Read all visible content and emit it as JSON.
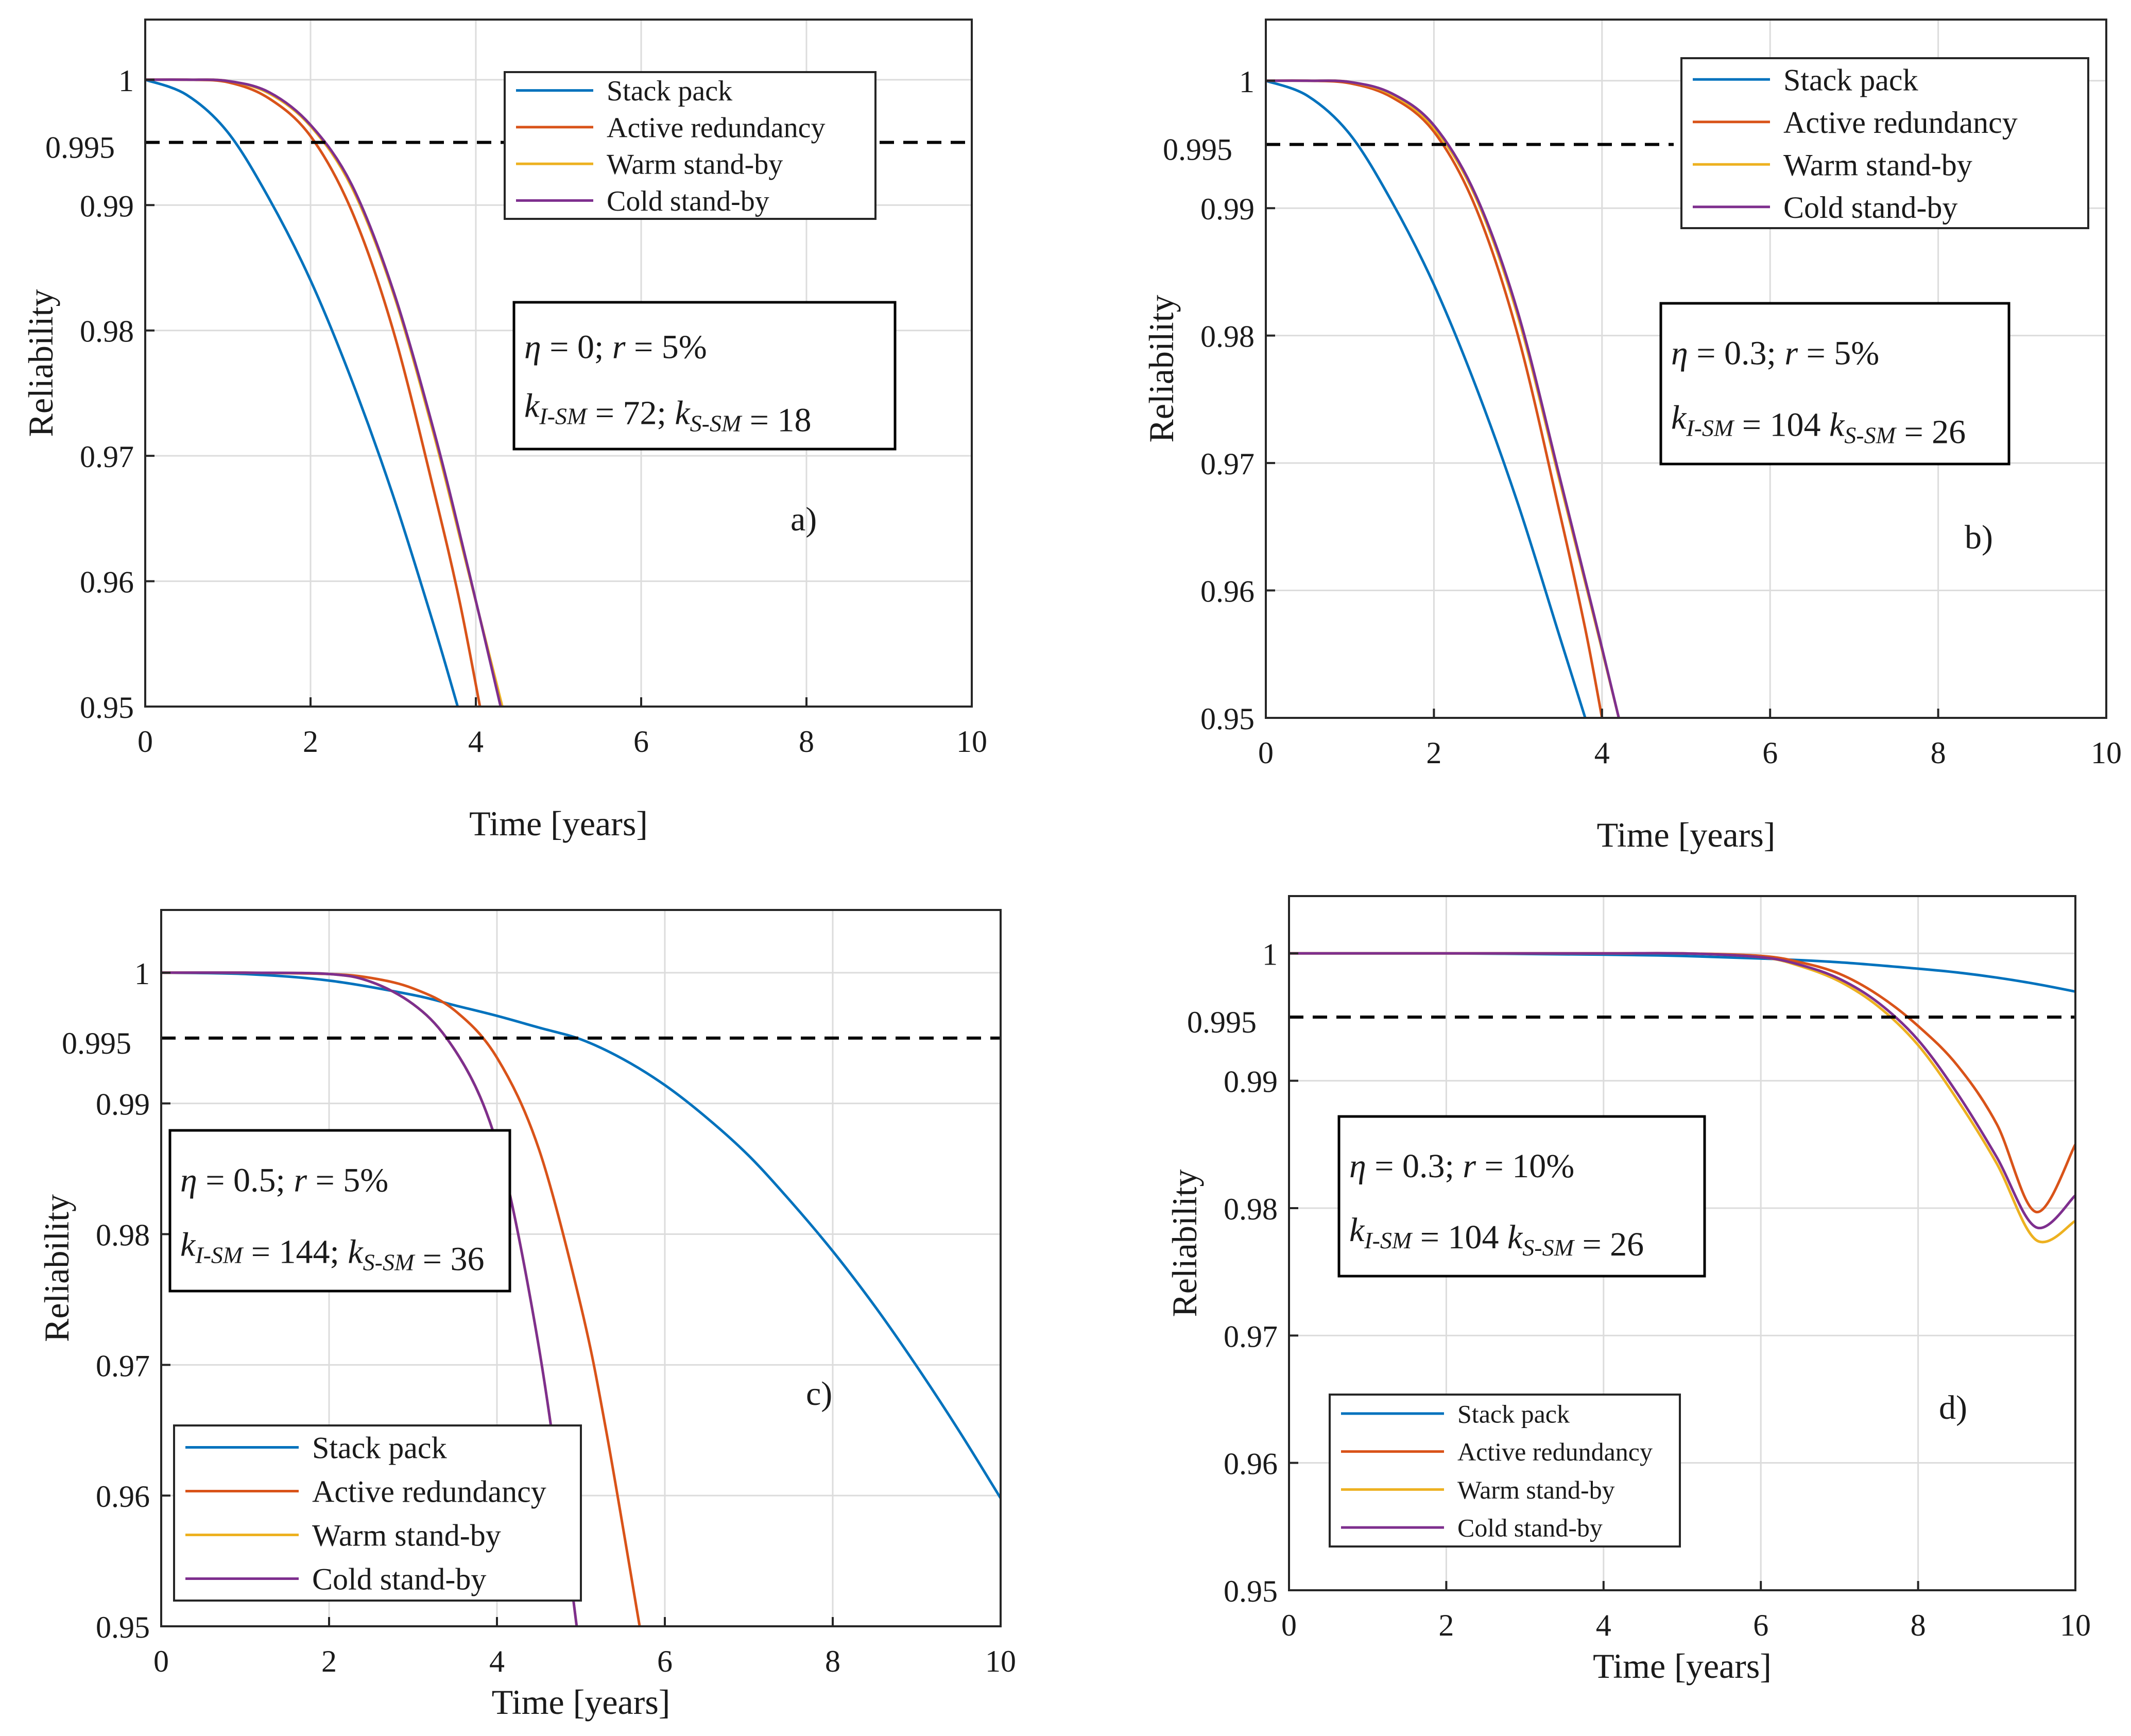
{
  "colors": {
    "stack": "#0072BD",
    "active": "#D95319",
    "warm": "#EDB120",
    "cold": "#7E2F8E",
    "grid": "#dcdcdc",
    "axis": "#262626",
    "threshold": "#000000"
  },
  "chart_data": [
    {
      "type": "line",
      "panel": "a)",
      "xlabel": "Time [years]",
      "ylabel": "Reliability",
      "xlim": [
        0,
        10
      ],
      "ylim": [
        0.95,
        1.005
      ],
      "xticks": [
        "0",
        "2",
        "4",
        "6",
        "8",
        "10"
      ],
      "yticks": [
        "0.95",
        "0.96",
        "0.97",
        "0.98",
        "0.99",
        "1"
      ],
      "threshold": {
        "value": 0.995,
        "label": "0.995"
      },
      "legend": {
        "position": "top-right",
        "entries": [
          "Stack pack",
          "Active redundancy",
          "Warm stand-by",
          "Cold stand-by"
        ]
      },
      "info": {
        "line1_eta": "η",
        "line1_rest": "= 0; ",
        "line1_r": "r",
        "line1_end": "= 5%",
        "line2": "k_{I-SM} = 72; k_{S-SM} = 18"
      },
      "series": [
        {
          "name": "Stack pack",
          "x": [
            0,
            0.5,
            1,
            1.5,
            2,
            2.5,
            3,
            3.5,
            3.78
          ],
          "y": [
            1,
            0.9988,
            0.9958,
            0.9905,
            0.984,
            0.976,
            0.9668,
            0.9563,
            0.95
          ]
        },
        {
          "name": "Active redundancy",
          "x": [
            0,
            0.5,
            1,
            1.5,
            2,
            2.5,
            3,
            3.5,
            3.8,
            4.05
          ],
          "y": [
            1,
            1,
            0.9998,
            0.9985,
            0.9955,
            0.9895,
            0.98,
            0.967,
            0.9585,
            0.95
          ]
        },
        {
          "name": "Warm stand-by",
          "x": [
            0,
            0.5,
            1,
            1.5,
            2,
            2.5,
            3,
            3.5,
            3.9,
            4.32
          ],
          "y": [
            1,
            1,
            0.9999,
            0.9989,
            0.9963,
            0.9914,
            0.983,
            0.9715,
            0.961,
            0.95
          ]
        },
        {
          "name": "Cold stand-by",
          "x": [
            0,
            0.5,
            1,
            1.5,
            2,
            2.5,
            3,
            3.5,
            3.9,
            4.3
          ],
          "y": [
            1,
            1,
            0.9999,
            0.999,
            0.9964,
            0.9916,
            0.9832,
            0.9718,
            0.9612,
            0.95
          ]
        }
      ]
    },
    {
      "type": "line",
      "panel": "b)",
      "xlabel": "Time [years]",
      "ylabel": "Reliability",
      "xlim": [
        0,
        10
      ],
      "ylim": [
        0.95,
        1.005
      ],
      "xticks": [
        "0",
        "2",
        "4",
        "6",
        "8",
        "10"
      ],
      "yticks": [
        "0.95",
        "0.96",
        "0.97",
        "0.98",
        "0.99",
        "1"
      ],
      "threshold": {
        "value": 0.995,
        "label": "0.995"
      },
      "legend": {
        "position": "top-right",
        "entries": [
          "Stack pack",
          "Active redundancy",
          "Warm stand-by",
          "Cold stand-by"
        ]
      },
      "info": {
        "line1_eta": "η",
        "line1_rest": "= 0.3; ",
        "line1_r": "r",
        "line1_end": "= 5%",
        "line2": "k_{I-SM} = 104 k_{S-SM} = 26"
      },
      "series": [
        {
          "name": "Stack pack",
          "x": [
            0,
            0.5,
            1,
            1.5,
            2,
            2.5,
            3,
            3.5,
            3.8
          ],
          "y": [
            1,
            0.9988,
            0.9958,
            0.9905,
            0.984,
            0.976,
            0.9668,
            0.9563,
            0.95
          ]
        },
        {
          "name": "Active redundancy",
          "x": [
            0,
            0.5,
            1,
            1.5,
            2,
            2.5,
            3,
            3.5,
            3.8,
            4.0
          ],
          "y": [
            1,
            1,
            0.9998,
            0.9987,
            0.996,
            0.99,
            0.98,
            0.966,
            0.957,
            0.95
          ]
        },
        {
          "name": "Warm stand-by",
          "x": [
            0,
            0.5,
            1,
            1.5,
            2,
            2.5,
            3,
            3.5,
            3.9,
            4.2
          ],
          "y": [
            1,
            1,
            0.9999,
            0.9989,
            0.9963,
            0.9908,
            0.9815,
            0.9685,
            0.958,
            0.95
          ]
        },
        {
          "name": "Cold stand-by",
          "x": [
            0,
            0.5,
            1,
            1.5,
            2,
            2.5,
            3,
            3.5,
            3.9,
            4.2
          ],
          "y": [
            1,
            1,
            0.9999,
            0.999,
            0.9965,
            0.991,
            0.9818,
            0.9688,
            0.9582,
            0.95
          ]
        }
      ]
    },
    {
      "type": "line",
      "panel": "c)",
      "xlabel": "Time [years]",
      "ylabel": "Reliability",
      "xlim": [
        0,
        10
      ],
      "ylim": [
        0.95,
        1.005
      ],
      "xticks": [
        "0",
        "2",
        "4",
        "6",
        "8",
        "10"
      ],
      "yticks": [
        "0.95",
        "0.96",
        "0.97",
        "0.98",
        "0.99",
        "1"
      ],
      "threshold": {
        "value": 0.995,
        "label": "0.995"
      },
      "legend": {
        "position": "bottom-left",
        "entries": [
          "Stack pack",
          "Active redundancy",
          "Warm stand-by",
          "Cold stand-by"
        ]
      },
      "info": {
        "line1_eta": "η",
        "line1_rest": "= 0.5; ",
        "line1_r": "r",
        "line1_end": "= 5%",
        "line2": "k_{I-SM} = 144; k_{S-SM} = 36"
      },
      "series": [
        {
          "name": "Stack pack",
          "x": [
            0,
            1,
            2,
            3,
            3.5,
            4,
            4.5,
            5,
            5.5,
            6,
            6.5,
            7,
            7.5,
            8,
            8.5,
            9,
            9.5,
            10
          ],
          "y": [
            1,
            0.9999,
            0.9994,
            0.9983,
            0.9975,
            0.9967,
            0.9958,
            0.9949,
            0.9934,
            0.9914,
            0.9889,
            0.986,
            0.9825,
            0.9787,
            0.9745,
            0.9699,
            0.965,
            0.9598
          ]
        },
        {
          "name": "Active redundancy",
          "x": [
            0,
            1,
            2,
            2.5,
            3,
            3.5,
            4,
            4.5,
            5,
            5.3,
            5.7
          ],
          "y": [
            1,
            1,
            0.9999,
            0.9996,
            0.9988,
            0.9971,
            0.9935,
            0.9865,
            0.9745,
            0.965,
            0.95
          ]
        },
        {
          "name": "Warm stand-by",
          "x": [
            0,
            1,
            2,
            2.5,
            3,
            3.4,
            3.8,
            4.1,
            4.4,
            4.65,
            4.95
          ],
          "y": [
            1,
            1,
            0.9999,
            0.9993,
            0.9976,
            0.995,
            0.9905,
            0.9845,
            0.975,
            0.965,
            0.95
          ]
        },
        {
          "name": "Cold stand-by",
          "x": [
            0,
            1,
            2,
            2.5,
            3,
            3.4,
            3.8,
            4.1,
            4.4,
            4.65,
            4.95
          ],
          "y": [
            1,
            1,
            0.9999,
            0.9993,
            0.9976,
            0.995,
            0.9905,
            0.9845,
            0.975,
            0.965,
            0.95
          ]
        }
      ]
    },
    {
      "type": "line",
      "panel": "d)",
      "xlabel": "Time [years]",
      "ylabel": "Reliability",
      "xlim": [
        0,
        10
      ],
      "ylim": [
        0.95,
        1.005
      ],
      "xticks": [
        "0",
        "2",
        "4",
        "6",
        "8",
        "10"
      ],
      "yticks": [
        "0.95",
        "0.96",
        "0.97",
        "0.98",
        "0.99",
        "1"
      ],
      "threshold": {
        "value": 0.995,
        "label": "0.995"
      },
      "legend": {
        "position": "bottom-left",
        "entries": [
          "Stack pack",
          "Active redundancy",
          "Warm stand-by",
          "Cold stand-by"
        ]
      },
      "info": {
        "line1_eta": "η",
        "line1_rest": "= 0.3; ",
        "line1_r": "r",
        "line1_end": "= 10%",
        "line2": "k_{I-SM} = 104 k_{S-SM} = 26"
      },
      "series": [
        {
          "name": "Stack pack",
          "x": [
            0,
            2,
            4,
            5,
            6,
            7,
            8,
            8.5,
            9,
            9.5,
            10
          ],
          "y": [
            1,
            1,
            0.9999,
            0.9998,
            0.9996,
            0.9993,
            0.9988,
            0.9985,
            0.9981,
            0.9976,
            0.997
          ]
        },
        {
          "name": "Active redundancy",
          "x": [
            0,
            2,
            4,
            5,
            6,
            6.5,
            7,
            7.5,
            8,
            8.5,
            9,
            9.5,
            10
          ],
          "y": [
            1,
            1,
            1,
            1,
            0.9998,
            0.9993,
            0.9984,
            0.9967,
            0.9943,
            0.9912,
            0.9866,
            0.9797,
            0.985
          ]
        },
        {
          "name": "Warm stand-by",
          "x": [
            0,
            2,
            4,
            5,
            6,
            6.5,
            7,
            7.5,
            8,
            8.5,
            9,
            9.5,
            10
          ],
          "y": [
            1,
            1,
            1,
            1,
            0.9997,
            0.999,
            0.9978,
            0.9958,
            0.9928,
            0.9885,
            0.9835,
            0.9775,
            0.979
          ]
        },
        {
          "name": "Cold stand-by",
          "x": [
            0,
            2,
            4,
            5,
            6,
            6.5,
            7,
            7.5,
            8,
            8.5,
            9,
            9.5,
            10
          ],
          "y": [
            1,
            1,
            1,
            1,
            0.9997,
            0.9991,
            0.998,
            0.9961,
            0.9932,
            0.989,
            0.984,
            0.9785,
            0.981
          ]
        }
      ]
    }
  ]
}
